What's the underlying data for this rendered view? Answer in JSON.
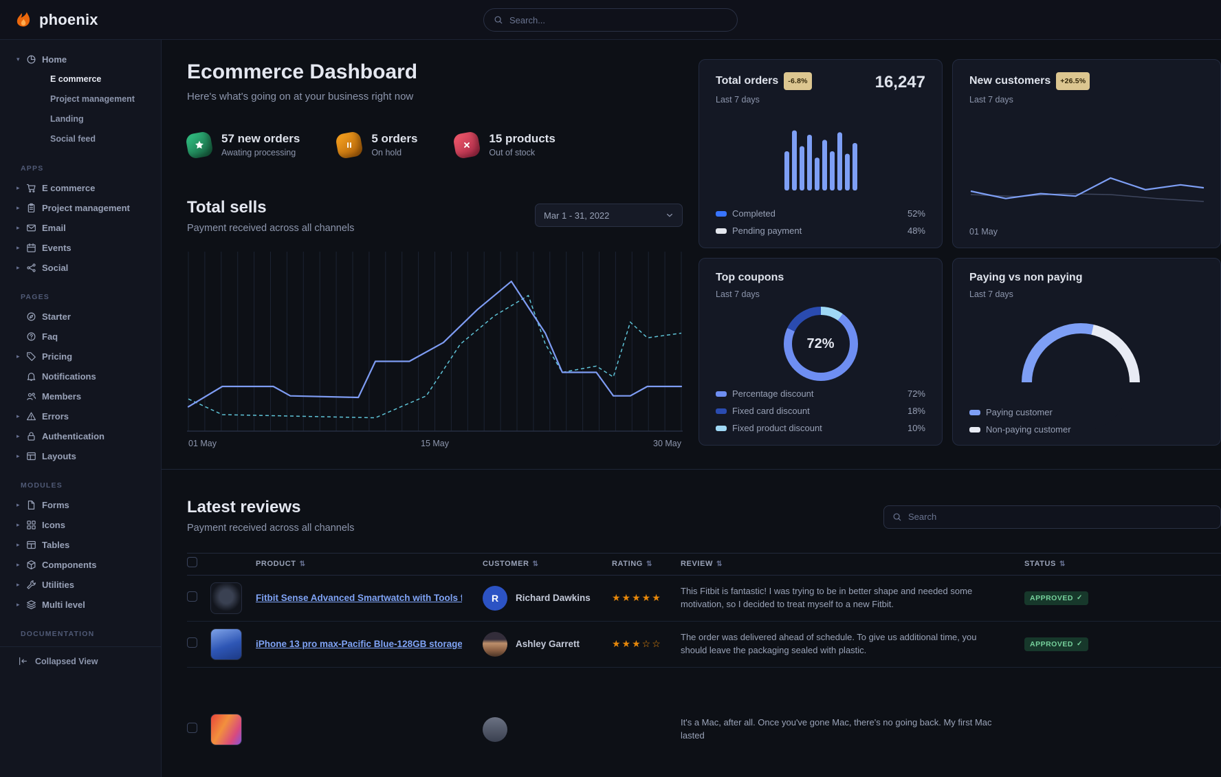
{
  "brand": {
    "name": "phoenix"
  },
  "navbar": {
    "search_placeholder": "Search..."
  },
  "sidebar": {
    "footer_label": "Collapsed View",
    "sections": [
      {
        "label": "",
        "items": [
          {
            "label": "Home",
            "icon": "pie-chart",
            "caret": "down",
            "children": [
              {
                "label": "E commerce",
                "active": true
              },
              {
                "label": "Project management",
                "active": false
              },
              {
                "label": "Landing",
                "active": false
              },
              {
                "label": "Social feed",
                "active": false
              }
            ]
          }
        ]
      },
      {
        "label": "APPS",
        "items": [
          {
            "label": "E commerce",
            "icon": "cart",
            "caret": "right"
          },
          {
            "label": "Project management",
            "icon": "clipboard",
            "caret": "right"
          },
          {
            "label": "Email",
            "icon": "mail",
            "caret": "right"
          },
          {
            "label": "Events",
            "icon": "calendar",
            "caret": "right"
          },
          {
            "label": "Social",
            "icon": "share",
            "caret": "right"
          }
        ]
      },
      {
        "label": "PAGES",
        "items": [
          {
            "label": "Starter",
            "icon": "compass"
          },
          {
            "label": "Faq",
            "icon": "question"
          },
          {
            "label": "Pricing",
            "icon": "tag",
            "caret": "right"
          },
          {
            "label": "Notifications",
            "icon": "bell"
          },
          {
            "label": "Members",
            "icon": "users"
          },
          {
            "label": "Errors",
            "icon": "warning",
            "caret": "right"
          },
          {
            "label": "Authentication",
            "icon": "lock",
            "caret": "right"
          },
          {
            "label": "Layouts",
            "icon": "layout",
            "caret": "right"
          }
        ]
      },
      {
        "label": "MODULES",
        "items": [
          {
            "label": "Forms",
            "icon": "file",
            "caret": "right"
          },
          {
            "label": "Icons",
            "icon": "grid",
            "caret": "right"
          },
          {
            "label": "Tables",
            "icon": "table",
            "caret": "right"
          },
          {
            "label": "Components",
            "icon": "cube",
            "caret": "right"
          },
          {
            "label": "Utilities",
            "icon": "wrench",
            "caret": "right"
          },
          {
            "label": "Multi level",
            "icon": "layers",
            "caret": "right"
          }
        ]
      },
      {
        "label": "DOCUMENTATION",
        "items": []
      }
    ]
  },
  "page": {
    "title": "Ecommerce Dashboard",
    "subtitle": "Here's what's going on at your business right now"
  },
  "stats": [
    {
      "value": "57 new orders",
      "caption": "Awating processing",
      "icon": "star",
      "color": "#2fb77c",
      "color_dark": "#14593a"
    },
    {
      "value": "5 orders",
      "caption": "On hold",
      "icon": "pause",
      "color": "#f09b1d",
      "color_dark": "#a85b07"
    },
    {
      "value": "15 products",
      "caption": "Out of stock",
      "icon": "cross",
      "color": "#e85468",
      "color_dark": "#a02342"
    }
  ],
  "total_sells": {
    "title": "Total sells",
    "subtitle": "Payment received across all channels",
    "date_range": "Mar 1 - 31, 2022",
    "x_axis_labels": [
      "01 May",
      "15 May",
      "30 May"
    ]
  },
  "cards": {
    "total_orders": {
      "title": "Total orders",
      "badge": "-6.8%",
      "period": "Last 7 days",
      "value": "16,247",
      "legend": [
        {
          "label": "Completed",
          "value": "52%",
          "color": "#3874ff"
        },
        {
          "label": "Pending payment",
          "value": "48%",
          "color": "#e3e6ed"
        }
      ]
    },
    "new_customers": {
      "title": "New customers",
      "badge": "+26.5%",
      "period": "Last 7 days",
      "x_label": "01 May"
    },
    "top_coupons": {
      "title": "Top coupons",
      "period": "Last 7 days",
      "legend": [
        {
          "label": "Percentage discount",
          "value": "72%",
          "color": "#6e8ef2"
        },
        {
          "label": "Fixed card discount",
          "value": "18%",
          "color": "#2a4bb0"
        },
        {
          "label": "Fixed product discount",
          "value": "10%",
          "color": "#9fd8f5"
        }
      ]
    },
    "paying_vs_non_paying": {
      "title": "Paying vs non paying",
      "period": "Last 7 days",
      "legend": [
        {
          "label": "Paying customer",
          "color": "#7e9ff5"
        },
        {
          "label": "Non-paying customer",
          "color": "#e8ebf4"
        }
      ]
    }
  },
  "chart_data": {
    "total_sells": {
      "type": "line",
      "title": "Total sells",
      "x_range_days": [
        1,
        30
      ],
      "grid_lines": 31,
      "x_tick_labels": [
        "01 May",
        "15 May",
        "30 May"
      ],
      "ylim": [
        0,
        100
      ],
      "series": [
        {
          "name": "current",
          "style": "solid",
          "color": "#7e9cf3",
          "points": [
            [
              1,
              12
            ],
            [
              3,
              25
            ],
            [
              6,
              25
            ],
            [
              7,
              19
            ],
            [
              11,
              18
            ],
            [
              12,
              41
            ],
            [
              14,
              41
            ],
            [
              16,
              53
            ],
            [
              18,
              74
            ],
            [
              20,
              92
            ],
            [
              22,
              59
            ],
            [
              23,
              34
            ],
            [
              25,
              34
            ],
            [
              26,
              19
            ],
            [
              27,
              19
            ],
            [
              28,
              25
            ],
            [
              30,
              25
            ]
          ]
        },
        {
          "name": "previous",
          "style": "dashed",
          "color": "#5fc4d8",
          "points": [
            [
              1,
              17
            ],
            [
              3,
              7
            ],
            [
              12,
              5
            ],
            [
              15,
              19
            ],
            [
              17,
              52
            ],
            [
              19,
              70
            ],
            [
              21,
              83
            ],
            [
              22,
              52
            ],
            [
              23,
              34
            ],
            [
              25,
              38
            ],
            [
              26,
              31
            ],
            [
              27,
              66
            ],
            [
              28,
              56
            ],
            [
              30,
              59
            ]
          ]
        }
      ]
    },
    "total_orders": {
      "type": "bar",
      "values": [
        62,
        95,
        70,
        88,
        52,
        80,
        62,
        92,
        58,
        75
      ],
      "color": "#7e9ff5",
      "legend": [
        {
          "label": "Completed",
          "value": 52
        },
        {
          "label": "Pending payment",
          "value": 48
        }
      ]
    },
    "new_customers": {
      "type": "line",
      "series": [
        {
          "name": "current",
          "color": "#7e9ff5",
          "points": [
            [
              0,
              45
            ],
            [
              15,
              30
            ],
            [
              30,
              40
            ],
            [
              45,
              35
            ],
            [
              60,
              72
            ],
            [
              75,
              48
            ],
            [
              90,
              58
            ],
            [
              100,
              52
            ]
          ]
        },
        {
          "name": "previous",
          "color": "#3e465e",
          "points": [
            [
              0,
              38
            ],
            [
              20,
              34
            ],
            [
              40,
              40
            ],
            [
              60,
              38
            ],
            [
              80,
              30
            ],
            [
              100,
              24
            ]
          ]
        }
      ]
    },
    "top_coupons": {
      "type": "pie",
      "center_label": "72%",
      "start_angle_deg": 36,
      "segments": [
        {
          "label": "Percentage discount",
          "value": 72,
          "color": "#6e8ef2"
        },
        {
          "label": "Fixed card discount",
          "value": 18,
          "color": "#2a4bb0"
        },
        {
          "label": "Fixed product discount",
          "value": 10,
          "color": "#9fd8f5"
        }
      ]
    },
    "paying_vs_non_paying": {
      "type": "pie",
      "segments": [
        {
          "label": "Paying customer",
          "value": 57,
          "color": "#7e9ff5"
        },
        {
          "label": "Non-paying customer",
          "value": 43,
          "color": "#e8ebf4"
        }
      ]
    }
  },
  "reviews": {
    "title": "Latest reviews",
    "subtitle": "Payment received across all channels",
    "search_placeholder": "Search",
    "columns": [
      "PRODUCT",
      "CUSTOMER",
      "RATING",
      "REVIEW",
      "STATUS"
    ],
    "rows": [
      {
        "product": "Fitbit Sense Advanced Smartwatch with Tools fo...",
        "thumb": "watch",
        "customer": "Richard Dawkins",
        "avatar": "initial",
        "avatar_initial": "R",
        "avatar_color": "#2c53c4",
        "rating": 5,
        "rating_max": 5,
        "review": "This Fitbit is fantastic! I was trying to be in better shape and needed some motivation, so I decided to treat myself to a new Fitbit.",
        "status": "APPROVED"
      },
      {
        "product": "iPhone 13 pro max-Pacific Blue-128GB storage",
        "thumb": "phone",
        "customer": "Ashley Garrett",
        "avatar": "photo",
        "rating": 3,
        "rating_max": 5,
        "review": "The order was delivered ahead of schedule. To give us additional time, you should leave the packaging sealed with plastic.",
        "status": "APPROVED"
      },
      {
        "product": "",
        "thumb": "imac",
        "customer": "",
        "avatar": "photo2",
        "rating": null,
        "rating_max": 5,
        "review": "It's a Mac, after all. Once you've gone Mac, there's no going back. My first Mac lasted",
        "status": "",
        "partial": true
      }
    ]
  }
}
